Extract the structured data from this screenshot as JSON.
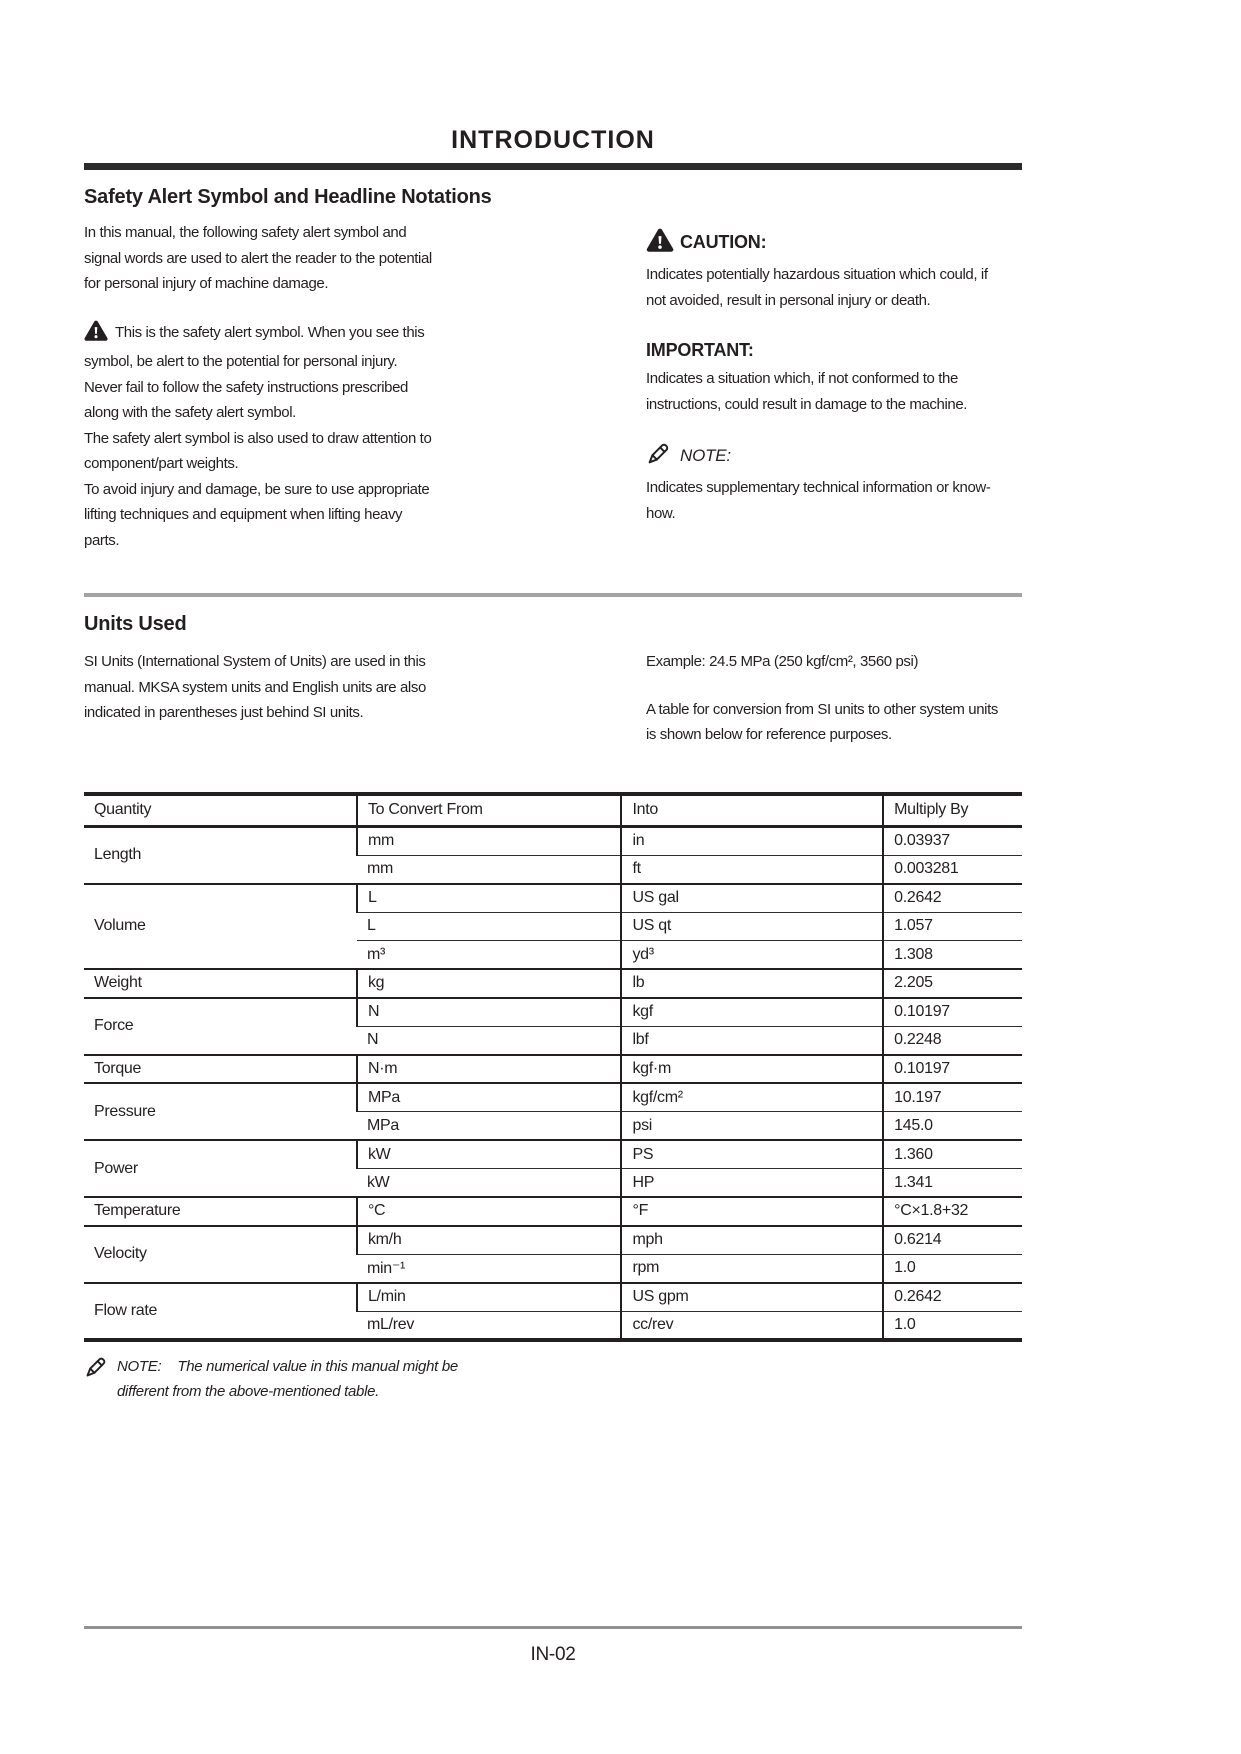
{
  "header": {
    "title": "INTRODUCTION"
  },
  "safety": {
    "heading": "Safety Alert Symbol and Headline Notations",
    "intro": "In this manual, the following safety alert symbol and\nsignal words are used to alert the reader to the potential\nfor personal injury of machine damage.",
    "alert_icon": "warning-triangle-icon",
    "alert_text": "This is the safety alert symbol. When you see this\nsymbol, be alert to the potential for personal injury.\nNever fail to follow the safety instructions prescribed\nalong with the safety alert symbol.\nThe safety alert symbol is also used to draw attention to\ncomponent/part weights.\nTo avoid injury and damage, be sure to use appropriate\nlifting techniques and equipment when lifting heavy\nparts.",
    "caution": {
      "icon": "warning-triangle-icon",
      "label": "CAUTION:",
      "text": "Indicates potentially hazardous situation which could, if\nnot avoided, result in personal injury or death."
    },
    "important": {
      "label": "IMPORTANT:",
      "text": "Indicates a situation which, if not conformed to the\ninstructions, could result in damage to the machine."
    },
    "note": {
      "icon": "pencil-icon",
      "label": "NOTE:",
      "text": "Indicates supplementary technical information or know-\nhow."
    }
  },
  "units": {
    "heading": "Units Used",
    "left_text": "SI Units (International System of Units) are used in this\nmanual. MKSA system units and English units are also\nindicated in parentheses just behind SI units.",
    "example": "Example: 24.5 MPa (250 kgf/cm², 3560 psi)",
    "right_text": "A table for conversion from SI units to other system units\nis shown below for reference purposes."
  },
  "conversion_table": {
    "headers": [
      "Quantity",
      "To Convert From",
      "Into",
      "Multiply By"
    ],
    "groups": [
      {
        "quantity": "Length",
        "rows": [
          [
            "mm",
            "in",
            "0.03937"
          ],
          [
            "mm",
            "ft",
            "0.003281"
          ]
        ]
      },
      {
        "quantity": "Volume",
        "rows": [
          [
            "L",
            "US gal",
            "0.2642"
          ],
          [
            "L",
            "US qt",
            "1.057"
          ],
          [
            "m³",
            "yd³",
            "1.308"
          ]
        ]
      },
      {
        "quantity": "Weight",
        "rows": [
          [
            "kg",
            "lb",
            "2.205"
          ]
        ]
      },
      {
        "quantity": "Force",
        "rows": [
          [
            "N",
            "kgf",
            "0.10197"
          ],
          [
            "N",
            "lbf",
            "0.2248"
          ]
        ]
      },
      {
        "quantity": "Torque",
        "rows": [
          [
            "N·m",
            "kgf·m",
            "0.10197"
          ]
        ]
      },
      {
        "quantity": "Pressure",
        "rows": [
          [
            "MPa",
            "kgf/cm²",
            "10.197"
          ],
          [
            "MPa",
            "psi",
            "145.0"
          ]
        ]
      },
      {
        "quantity": "Power",
        "rows": [
          [
            "kW",
            "PS",
            "1.360"
          ],
          [
            "kW",
            "HP",
            "1.341"
          ]
        ]
      },
      {
        "quantity": "Temperature",
        "rows": [
          [
            "°C",
            "°F",
            "°C×1.8+32"
          ]
        ]
      },
      {
        "quantity": "Velocity",
        "rows": [
          [
            "km/h",
            "mph",
            "0.6214"
          ],
          [
            "min⁻¹",
            "rpm",
            "1.0"
          ]
        ]
      },
      {
        "quantity": "Flow rate",
        "rows": [
          [
            "L/min",
            "US gpm",
            "0.2642"
          ],
          [
            "mL/rev",
            "cc/rev",
            "1.0"
          ]
        ]
      }
    ]
  },
  "table_note": {
    "icon": "pencil-icon",
    "label": "NOTE:",
    "text": "The numerical value in this manual might be\ndifferent from the above-mentioned table."
  },
  "footer": {
    "page_number": "IN-02"
  },
  "colors": {
    "text": "#231f20",
    "table_border": "#231f20",
    "rule_gray": "#a3a3a3",
    "footer_rule_gray": "#929292"
  }
}
